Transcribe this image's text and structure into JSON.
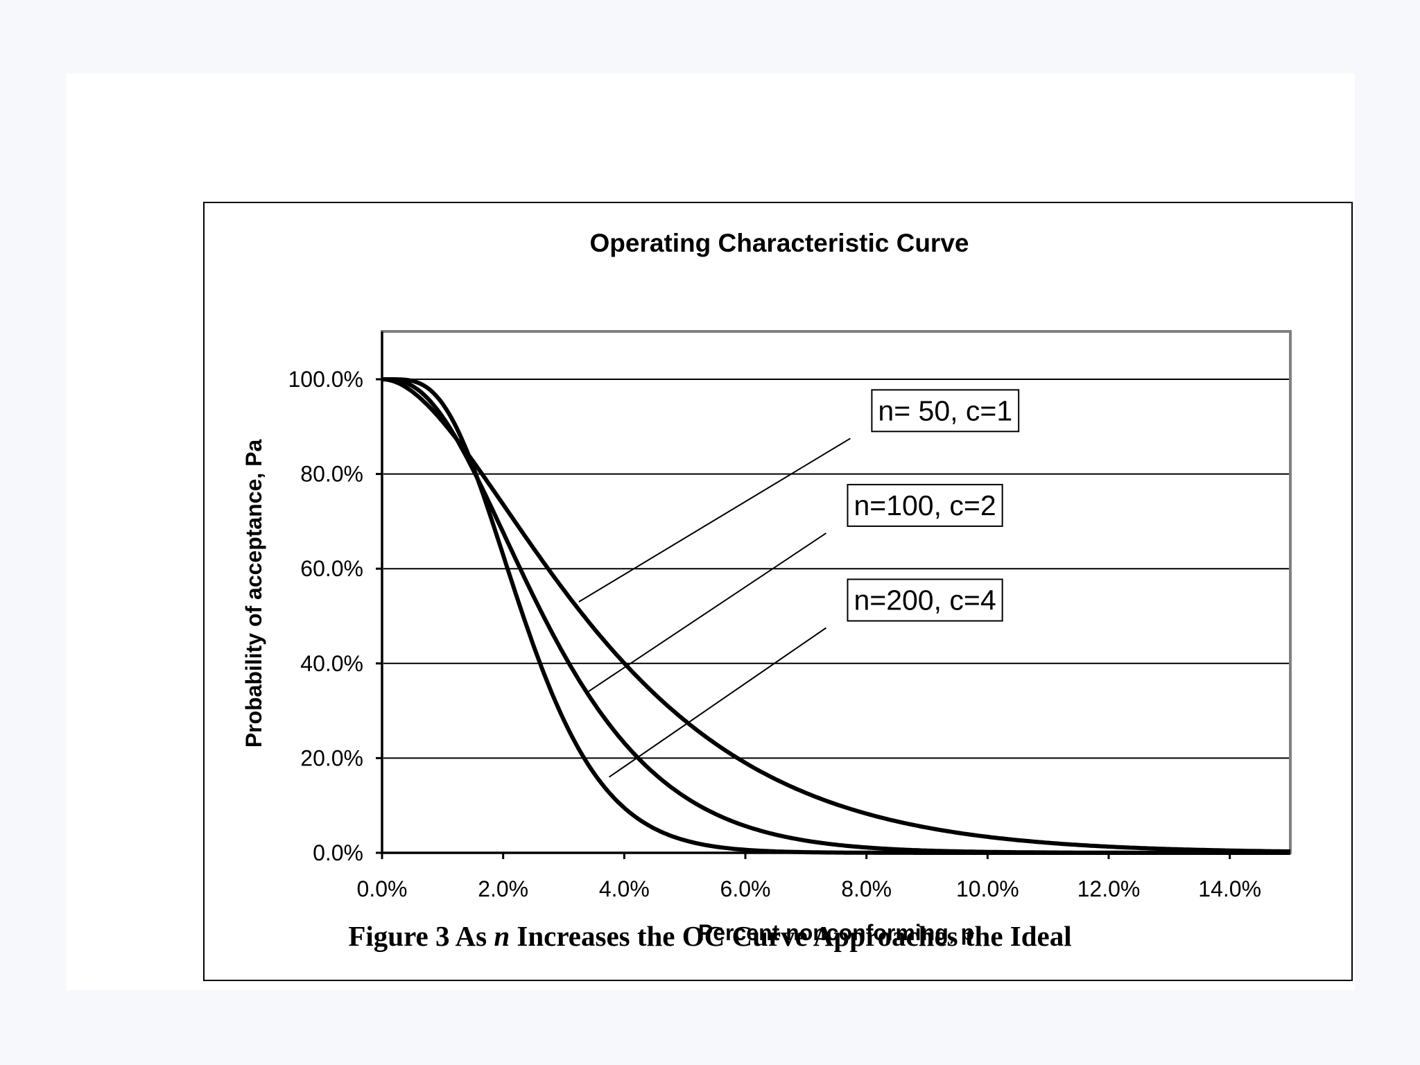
{
  "chart_data": {
    "type": "line",
    "title": "Operating Characteristic Curve",
    "xlabel": "Percent nonconforming, p",
    "ylabel": "Probability of acceptance, Pa",
    "xlim": [
      0,
      15
    ],
    "ylim": [
      0,
      110
    ],
    "x_ticks": [
      0,
      2,
      4,
      6,
      8,
      10,
      12,
      14
    ],
    "x_tick_labels": [
      "0.0%",
      "2.0%",
      "4.0%",
      "6.0%",
      "8.0%",
      "10.0%",
      "12.0%",
      "14.0%"
    ],
    "y_ticks": [
      0,
      20,
      40,
      60,
      80,
      100
    ],
    "y_tick_labels": [
      "0.0%",
      "20.0%",
      "40.0%",
      "60.0%",
      "80.0%",
      "100.0%"
    ],
    "grid": "horizontal",
    "series": [
      {
        "name": "n= 50, c=1",
        "n": 50,
        "c": 1
      },
      {
        "name": "n=100, c=2",
        "n": 100,
        "c": 2
      },
      {
        "name": "n=200, c=4",
        "n": 200,
        "c": 4
      }
    ],
    "annotations": [
      {
        "text": "n= 50, c=1",
        "series": 0,
        "label_at": [
          8.1,
          90
        ],
        "points_to": [
          3.25,
          53
        ]
      },
      {
        "text": "n=100, c=2",
        "series": 1,
        "label_at": [
          7.7,
          70
        ],
        "points_to": [
          3.4,
          34
        ]
      },
      {
        "text": "n=200, c=4",
        "series": 2,
        "label_at": [
          7.7,
          50
        ],
        "points_to": [
          3.75,
          16
        ]
      }
    ]
  },
  "caption": {
    "prefix": "Figure 3 As ",
    "variable": "n",
    "suffix": " Increases the OC Curve Approaches the Ideal"
  }
}
